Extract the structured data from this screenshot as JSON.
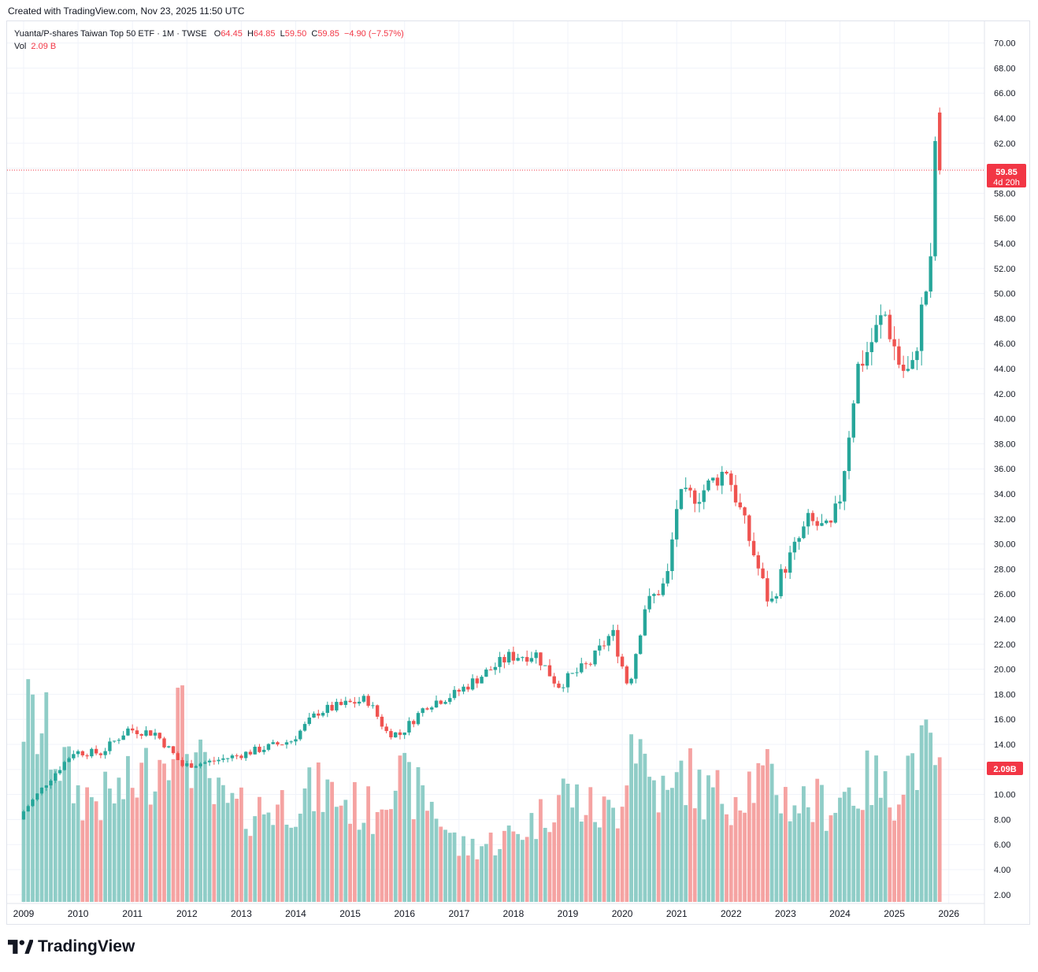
{
  "created_text": "Created with TradingView.com, Nov 23, 2025 11:50 UTC",
  "legend": {
    "symbol": "Yuanta/P-shares Taiwan Top 50 ETF · 1M · TWSE",
    "o_label": "O",
    "o_value": "64.45",
    "h_label": "H",
    "h_value": "64.85",
    "l_label": "L",
    "l_value": "59.50",
    "c_label": "C",
    "c_value": "59.85",
    "change": "−4.90 (−7.57%)",
    "vol_label": "Vol",
    "vol_value": "2.09 B"
  },
  "brand": "TradingView",
  "colors": {
    "up": "#26a69a",
    "down": "#ef5350",
    "up_vol": "#8fcdc7",
    "down_vol": "#f5a3a2",
    "grid": "#f0f3fa",
    "text": "#131722",
    "badge": "#f23645"
  },
  "chart_data": {
    "type": "candlestick",
    "title": "Yuanta/P-shares Taiwan Top 50 ETF · 1M · TWSE",
    "price_axis": {
      "ticks": [
        "70.00",
        "68.00",
        "66.00",
        "64.00",
        "62.00",
        "60.00",
        "58.00",
        "56.00",
        "54.00",
        "52.00",
        "50.00",
        "48.00",
        "46.00",
        "44.00",
        "42.00",
        "40.00",
        "38.00",
        "36.00",
        "34.00",
        "32.00",
        "30.00",
        "28.00",
        "26.00",
        "24.00",
        "22.00",
        "20.00",
        "18.00",
        "16.00",
        "14.00",
        "12.00",
        "10.00",
        "8.00",
        "6.00",
        "4.00",
        "2.00"
      ],
      "range": [
        1.2,
        71.0
      ]
    },
    "time_axis": {
      "ticks": [
        "2009",
        "2010",
        "2011",
        "2012",
        "2013",
        "2014",
        "2015",
        "2016",
        "2017",
        "2018",
        "2019",
        "2020",
        "2021",
        "2022",
        "2023",
        "2024",
        "2025",
        "2026"
      ]
    },
    "last_price": {
      "value": "59.85",
      "countdown": "4d 20h"
    },
    "last_volume": "2.09B",
    "anchors": [
      {
        "t": 2009.0,
        "p": 8.2,
        "v": 4.2
      },
      {
        "t": 2009.5,
        "p": 10.9,
        "v": 3.6
      },
      {
        "t": 2010.0,
        "p": 13.4,
        "v": 2.4
      },
      {
        "t": 2010.5,
        "p": 13.3,
        "v": 2.3
      },
      {
        "t": 2011.0,
        "p": 15.2,
        "v": 2.6
      },
      {
        "t": 2011.5,
        "p": 14.9,
        "v": 3.2
      },
      {
        "t": 2011.8,
        "p": 13.4,
        "v": 4.3
      },
      {
        "t": 2012.0,
        "p": 12.3,
        "v": 3.6
      },
      {
        "t": 2012.5,
        "p": 12.6,
        "v": 2.3
      },
      {
        "t": 2013.0,
        "p": 13.1,
        "v": 2.0
      },
      {
        "t": 2013.5,
        "p": 13.7,
        "v": 2.1
      },
      {
        "t": 2014.0,
        "p": 14.3,
        "v": 2.3
      },
      {
        "t": 2014.5,
        "p": 16.6,
        "v": 2.5
      },
      {
        "t": 2015.0,
        "p": 17.2,
        "v": 2.2
      },
      {
        "t": 2015.4,
        "p": 17.6,
        "v": 2.0
      },
      {
        "t": 2015.75,
        "p": 15.0,
        "v": 2.9
      },
      {
        "t": 2016.0,
        "p": 14.8,
        "v": 2.6
      },
      {
        "t": 2016.5,
        "p": 17.2,
        "v": 2.2
      },
      {
        "t": 2017.0,
        "p": 18.0,
        "v": 1.2
      },
      {
        "t": 2017.5,
        "p": 19.5,
        "v": 1.3
      },
      {
        "t": 2018.0,
        "p": 21.0,
        "v": 1.5
      },
      {
        "t": 2018.5,
        "p": 21.2,
        "v": 1.9
      },
      {
        "t": 2018.9,
        "p": 18.7,
        "v": 2.5
      },
      {
        "t": 2019.5,
        "p": 20.5,
        "v": 2.0
      },
      {
        "t": 2019.9,
        "p": 23.0,
        "v": 2.0
      },
      {
        "t": 2020.2,
        "p": 18.5,
        "v": 4.0
      },
      {
        "t": 2020.5,
        "p": 25.0,
        "v": 2.8
      },
      {
        "t": 2020.9,
        "p": 27.0,
        "v": 2.2
      },
      {
        "t": 2021.1,
        "p": 33.5,
        "v": 3.0
      },
      {
        "t": 2021.5,
        "p": 34.0,
        "v": 2.4
      },
      {
        "t": 2022.0,
        "p": 36.0,
        "v": 2.4
      },
      {
        "t": 2022.3,
        "p": 32.0,
        "v": 2.7
      },
      {
        "t": 2022.8,
        "p": 25.0,
        "v": 2.7
      },
      {
        "t": 2023.0,
        "p": 27.5,
        "v": 2.3
      },
      {
        "t": 2023.5,
        "p": 31.8,
        "v": 2.2
      },
      {
        "t": 2023.9,
        "p": 31.0,
        "v": 2.2
      },
      {
        "t": 2024.1,
        "p": 34.0,
        "v": 2.5
      },
      {
        "t": 2024.4,
        "p": 44.0,
        "v": 2.5
      },
      {
        "t": 2024.6,
        "p": 45.5,
        "v": 2.8
      },
      {
        "t": 2024.9,
        "p": 48.5,
        "v": 2.3
      },
      {
        "t": 2025.2,
        "p": 44.0,
        "v": 3.0
      },
      {
        "t": 2025.4,
        "p": 43.5,
        "v": 3.2
      },
      {
        "t": 2025.6,
        "p": 49.0,
        "v": 3.3
      },
      {
        "t": 2025.75,
        "p": 52.0,
        "v": 3.2
      },
      {
        "t": 2025.8,
        "p": 58.0,
        "v": 3.6
      },
      {
        "t": 2025.85,
        "p": 64.45,
        "v": 3.6
      }
    ],
    "last_candle": {
      "o": 64.45,
      "h": 64.85,
      "l": 59.5,
      "c": 59.85
    }
  }
}
